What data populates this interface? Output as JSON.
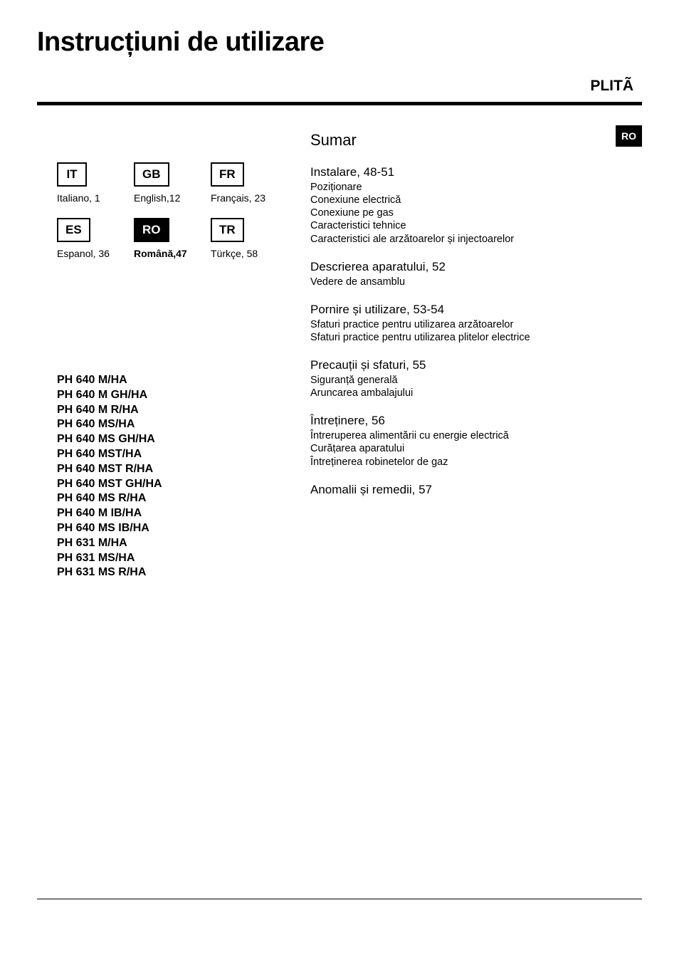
{
  "title": "Instrucțiuni de utilizare",
  "product_type": "PLITÃ",
  "side_tab": "RO",
  "languages": [
    {
      "code": "IT",
      "label": "Italiano,  1",
      "active": false
    },
    {
      "code": "GB",
      "label": "English,12",
      "active": false
    },
    {
      "code": "FR",
      "label": "Français, 23",
      "active": false
    },
    {
      "code": "ES",
      "label": "Espanol, 36",
      "active": false
    },
    {
      "code": "RO",
      "label": "Română,47",
      "active": true
    },
    {
      "code": "TR",
      "label": "Türkçe, 58",
      "active": false
    }
  ],
  "models": [
    "PH 640 M/HA",
    "PH 640 M GH/HA",
    "PH 640 M R/HA",
    "PH 640 MS/HA",
    "PH 640 MS GH/HA",
    "PH 640 MST/HA",
    "PH 640 MST R/HA",
    "PH 640 MST GH/HA",
    "PH 640 MS R/HA",
    "PH 640 M IB/HA",
    "PH 640 MS IB/HA",
    "PH 631 M/HA",
    "PH 631 MS/HA",
    "PH 631 MS R/HA"
  ],
  "sumar_title": "Sumar",
  "sections": [
    {
      "heading": "Instalare, 48-51",
      "subs": [
        "Poziționare",
        "Conexiune electrică",
        "Conexiune pe gas",
        "Caracteristici tehnice",
        "Caracteristici ale arzătoarelor și injectoarelor"
      ]
    },
    {
      "heading": "Descrierea aparatului, 52",
      "subs": [
        "Vedere de ansamblu"
      ]
    },
    {
      "heading": "Pornire și utilizare, 53-54",
      "subs": [
        "Sfaturi practice pentru utilizarea arzătoarelor",
        "Sfaturi practice pentru utilizarea plitelor electrice"
      ]
    },
    {
      "heading": "Precauții și sfaturi, 55",
      "subs": [
        "Siguranță generală",
        "Aruncarea ambalajului"
      ]
    },
    {
      "heading": "Întreținere, 56",
      "subs": [
        "Întreruperea alimentării cu energie electrică",
        "Curățarea aparatului",
        "Întreținerea robinetelor de gaz"
      ]
    },
    {
      "heading": "Anomalii și remedii, 57",
      "subs": []
    }
  ],
  "colors": {
    "text": "#000000",
    "background": "#ffffff",
    "tab_bg": "#000000",
    "tab_fg": "#ffffff"
  }
}
